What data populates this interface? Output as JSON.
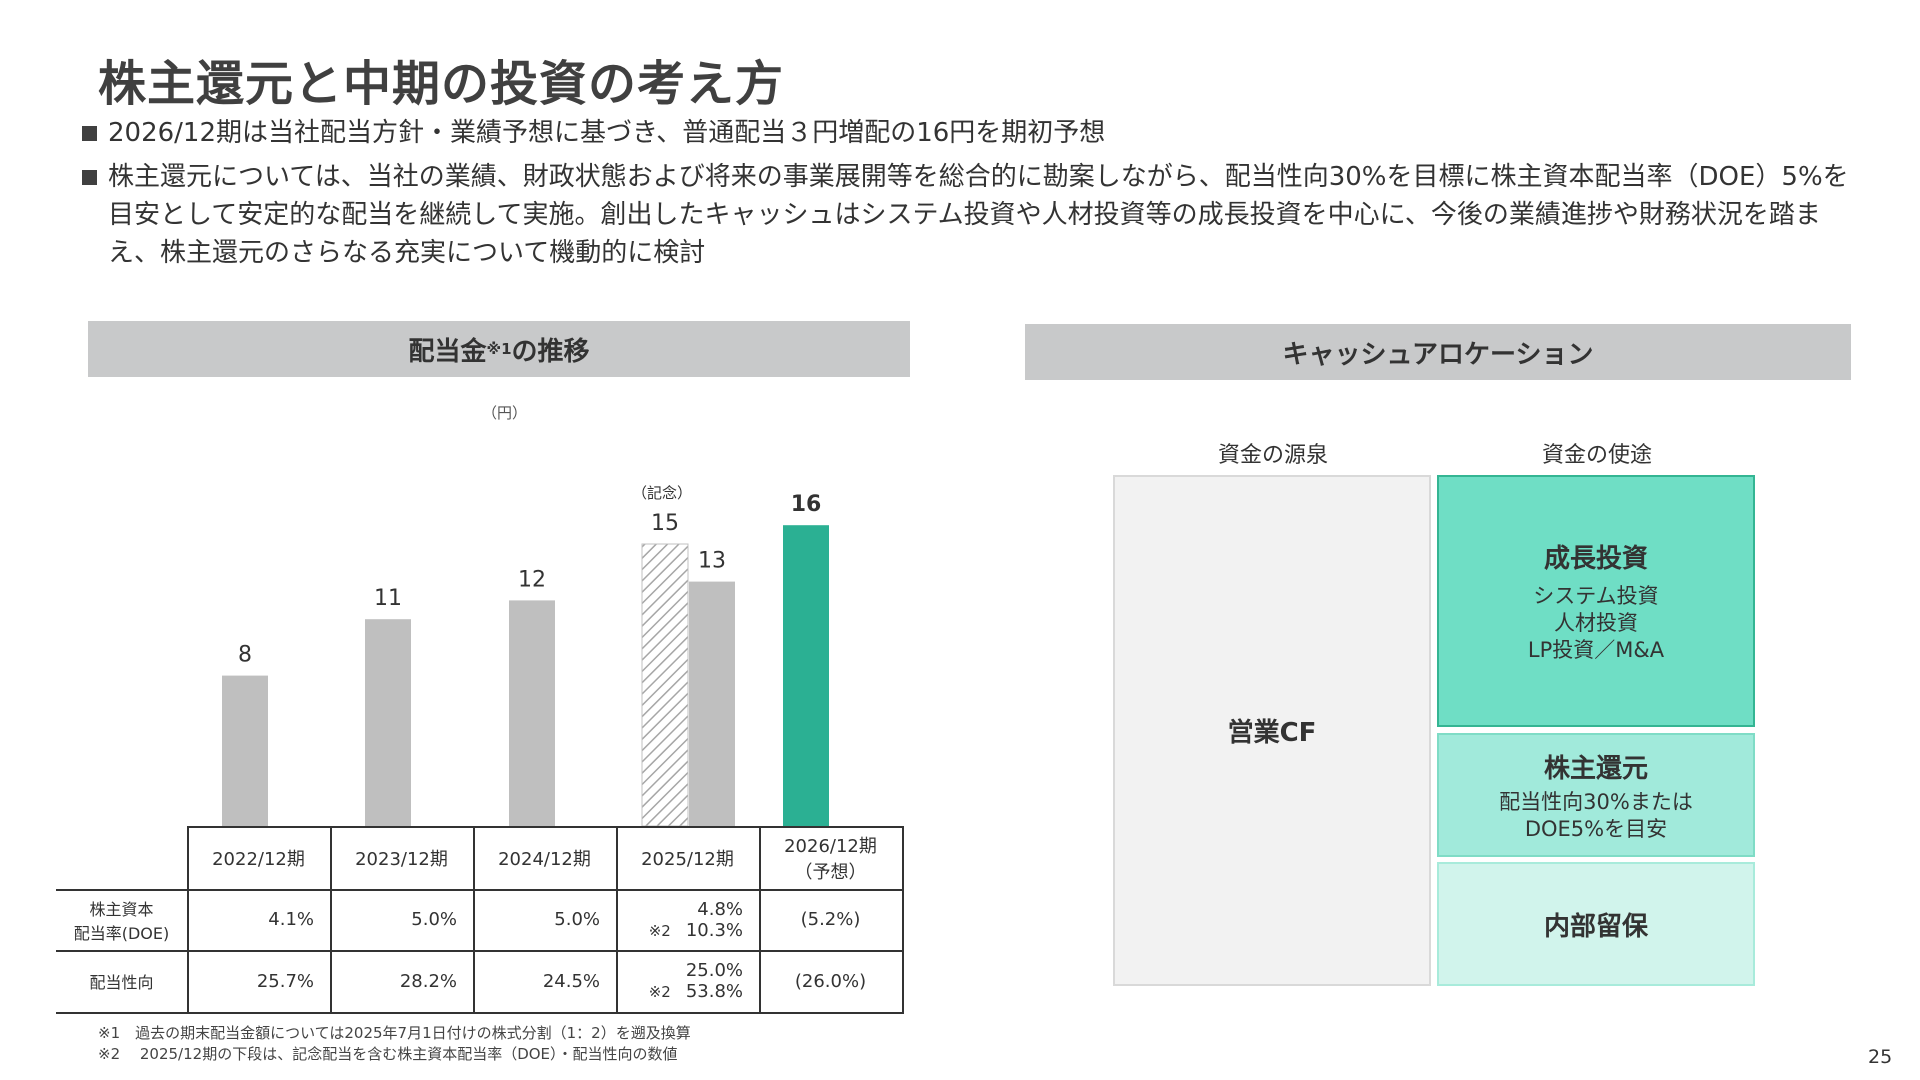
{
  "title": "株主還元と中期の投資の考え方",
  "bullets": [
    "2026/12期は当社配当方針・業績予想に基づき、普通配当３円増配の16円を期初予想",
    "株主還元については、当社の業績、財政状態および将来の事業展開等を総合的に勘案しながら、配当性向30%を目標に株主資本配当率（DOE）5%を目安として安定的な配当を継続して実施。創出したキャッシュはシステム投資や人材投資等の成長投資を中心に、今後の業績進捗や財務状況を踏まえ、株主還元のさらなる充実について機動的に検討"
  ],
  "left_panel": {
    "header_main": "配当金",
    "header_sup": "※1",
    "header_tail": "の推移",
    "unit": "（円）",
    "commemorative_label": "（記念）"
  },
  "chart_data": {
    "type": "bar",
    "title": "配当金※1の推移",
    "unit": "（円）",
    "categories": [
      "2022/12期",
      "2023/12期",
      "2024/12期",
      "2025/12期",
      "2026/12期（予想）"
    ],
    "values": [
      8,
      11,
      12,
      13,
      16
    ],
    "value_labels": [
      "8",
      "11",
      "12",
      "13",
      "16"
    ],
    "extra_bars": [
      {
        "category": "2025/12期",
        "value": 15,
        "label": "15",
        "note": "（記念）",
        "pattern": "hatched"
      }
    ],
    "ylim": [
      0,
      16
    ],
    "colors": {
      "normal": "#bfbfbf",
      "forecast": "#2bb093",
      "hatch": "#a6a6a6"
    }
  },
  "table": {
    "columns": [
      "2022/12期",
      "2023/12期",
      "2024/12期",
      "2025/12期",
      "2026/12期",
      "（予想）"
    ],
    "rows": [
      {
        "label1": "株主資本",
        "label2": "配当率(DOE)",
        "values": [
          "4.1%",
          "5.0%",
          "5.0%",
          "4.8%",
          "(5.2%)"
        ],
        "note_mark": "※2",
        "note_value": "10.3%"
      },
      {
        "label1": "配当性向",
        "label2": "",
        "values": [
          "25.7%",
          "28.2%",
          "24.5%",
          "25.0%",
          "(26.0%)"
        ],
        "note_mark": "※2",
        "note_value": "53.8%"
      }
    ]
  },
  "footnotes": [
    "※1　過去の期末配当金額については2025年7月1日付けの株式分割（1：2）を遡及換算",
    "※2　 2025/12期の下段は、記念配当を含む株主資本配当率（DOE）・配当性向の数値"
  ],
  "right_panel": {
    "header": "キャッシュアロケーション",
    "source_label": "資金の源泉",
    "use_label": "資金の使途",
    "source_box": "営業CF",
    "uses": [
      {
        "heading": "成長投資",
        "lines": [
          "システム投資",
          "人材投資",
          "LP投資／M&A"
        ],
        "color": "#6fdec5"
      },
      {
        "heading": "株主還元",
        "lines": [
          "配当性向30%または",
          "DOE5%を目安"
        ],
        "color": "#a1eadb"
      },
      {
        "heading": "内部留保",
        "lines": [],
        "color": "#d1f4ec"
      }
    ],
    "source_color": "#f2f2f2"
  },
  "page_number": "25"
}
